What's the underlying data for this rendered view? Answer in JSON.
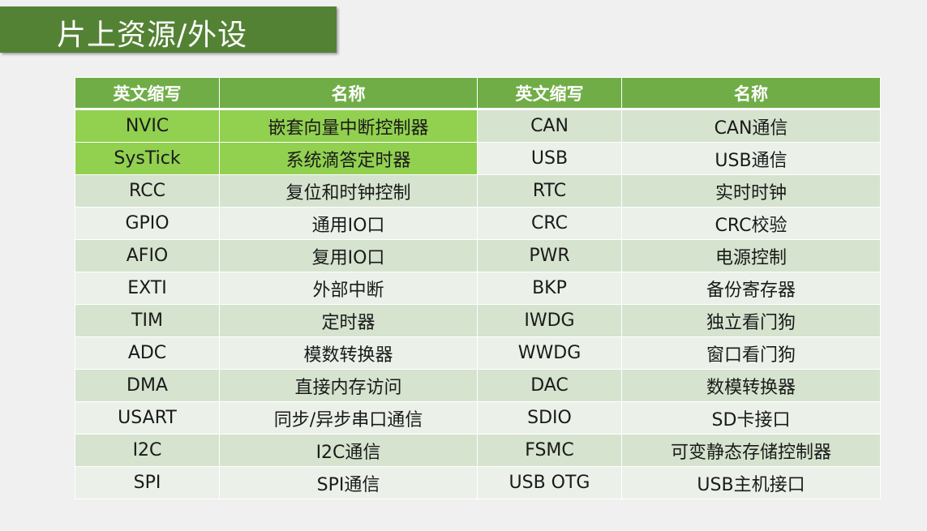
{
  "title": "片上资源/外设",
  "colors": {
    "title_bg": "#548235",
    "header_bg": "#70ad47",
    "highlight": "#92d050",
    "row_dark": "#d5e3cf",
    "row_light": "#ebf1e9"
  },
  "table": {
    "headers": [
      "英文缩写",
      "名称",
      "英文缩写",
      "名称"
    ],
    "rows": [
      {
        "cells": [
          "NVIC",
          "嵌套向量中断控制器",
          "CAN",
          "CAN通信"
        ],
        "highlighted": true
      },
      {
        "cells": [
          "SysTick",
          "系统滴答定时器",
          "USB",
          "USB通信"
        ],
        "highlighted": true
      },
      {
        "cells": [
          "RCC",
          "复位和时钟控制",
          "RTC",
          "实时时钟"
        ]
      },
      {
        "cells": [
          "GPIO",
          "通用IO口",
          "CRC",
          "CRC校验"
        ]
      },
      {
        "cells": [
          "AFIO",
          "复用IO口",
          "PWR",
          "电源控制"
        ]
      },
      {
        "cells": [
          "EXTI",
          "外部中断",
          "BKP",
          "备份寄存器"
        ]
      },
      {
        "cells": [
          "TIM",
          "定时器",
          "IWDG",
          "独立看门狗"
        ]
      },
      {
        "cells": [
          "ADC",
          "模数转换器",
          "WWDG",
          "窗口看门狗"
        ]
      },
      {
        "cells": [
          "DMA",
          "直接内存访问",
          "DAC",
          "数模转换器"
        ]
      },
      {
        "cells": [
          "USART",
          "同步/异步串口通信",
          "SDIO",
          "SD卡接口"
        ]
      },
      {
        "cells": [
          "I2C",
          "I2C通信",
          "FSMC",
          "可变静态存储控制器"
        ]
      },
      {
        "cells": [
          "SPI",
          "SPI通信",
          "USB OTG",
          "USB主机接口"
        ]
      }
    ]
  }
}
